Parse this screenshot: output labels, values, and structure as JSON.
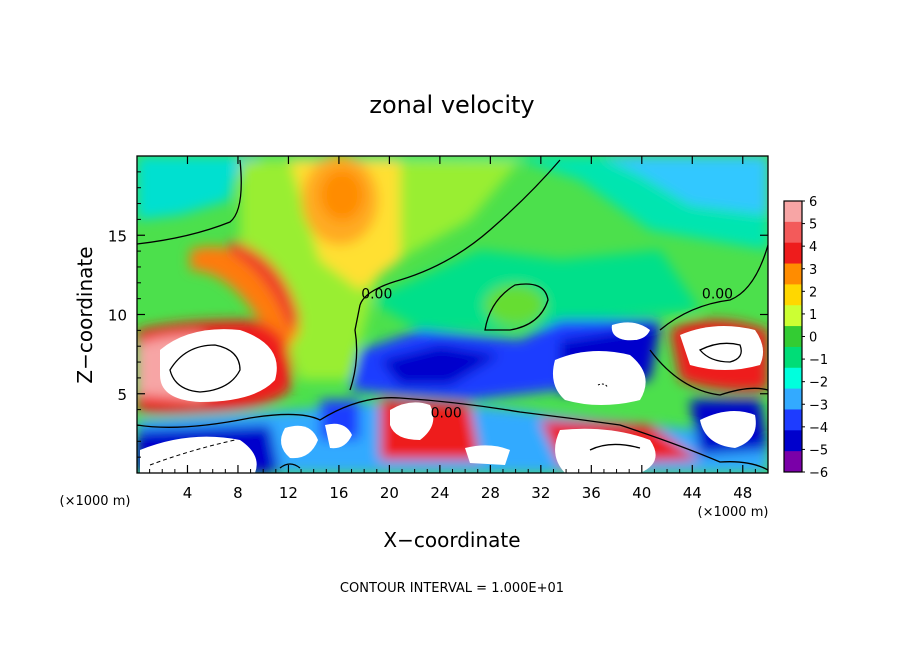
{
  "chart_data": {
    "type": "heatmap",
    "title": "zonal velocity",
    "xlabel": "X−coordinate",
    "ylabel": "Z−coordinate",
    "x_scale_note": "(×1000 m)",
    "y_scale_note": "(×1000 m)",
    "xlim": [
      0,
      50
    ],
    "ylim": [
      0,
      20
    ],
    "x_ticks": [
      4,
      8,
      12,
      16,
      20,
      24,
      28,
      32,
      36,
      40,
      44,
      48
    ],
    "y_ticks": [
      5,
      10,
      15
    ],
    "colorbar": {
      "levels": [
        6,
        5,
        4,
        3,
        2,
        1,
        0,
        -1,
        -2,
        -3,
        -4,
        -5,
        -6
      ],
      "labels": [
        "6",
        "5",
        "4",
        "3",
        "2",
        "1",
        "0",
        "−1",
        "−2",
        "−3",
        "−4",
        "−5",
        "−6"
      ],
      "colors": [
        "#f7a5a5",
        "#f35a5a",
        "#ee1c1c",
        "#ff8c00",
        "#ffd700",
        "#ccff33",
        "#33cc33",
        "#00dd77",
        "#00ffdd",
        "#33aaff",
        "#1e3cff",
        "#0000cc",
        "#7a00a8"
      ]
    },
    "contour_labels": [
      {
        "text": "0.00",
        "x": 19,
        "z": 11
      },
      {
        "text": "0.00",
        "x": 46,
        "z": 11
      },
      {
        "text": "0.00",
        "x": 24.5,
        "z": 3.5
      }
    ],
    "note": "CONTOUR INTERVAL = 1.000E+01"
  }
}
